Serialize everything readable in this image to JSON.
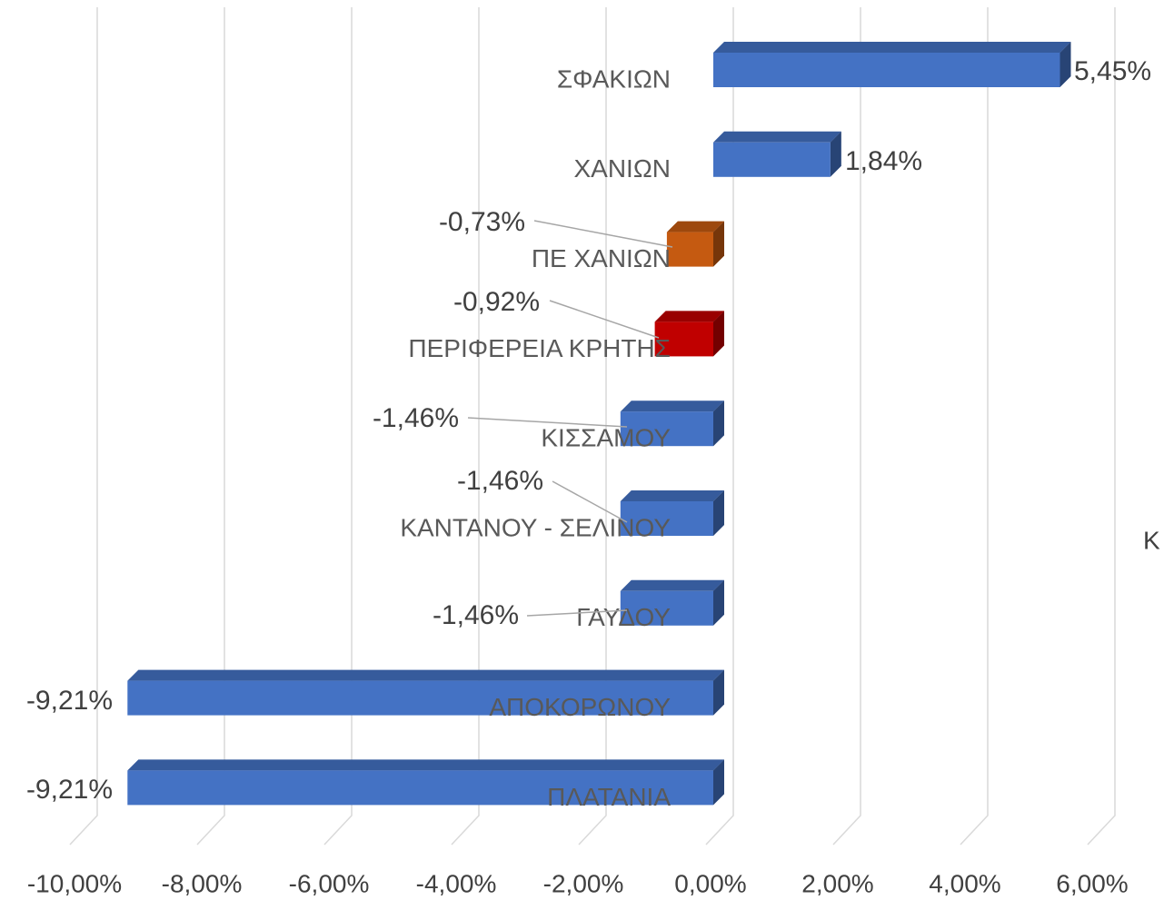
{
  "chart_data": {
    "type": "bar",
    "orientation": "horizontal",
    "categories": [
      "ΣΦΑΚΙΩΝ",
      "ΧΑΝΙΩΝ",
      "ΠΕ ΧΑΝΙΩΝ",
      "ΠΕΡΙΦΕΡΕΙΑ ΚΡΗΤΗΣ",
      "ΚΙΣΣΑΜΟΥ",
      "ΚΑΝΤΑΝΟΥ - ΣΕΛΙΝΟΥ",
      "ΓΑΥΔΟΥ",
      "ΑΠΟΚΟΡΩΝΟΥ",
      "ΠΛΑΤΑΝΙΑ"
    ],
    "values": [
      5.45,
      1.84,
      -0.73,
      -0.92,
      -1.46,
      -1.46,
      -1.46,
      -9.21,
      -9.21
    ],
    "value_labels": [
      "5,45%",
      "1,84%",
      "-0,73%",
      "-0,92%",
      "-1,46%",
      "-1,46%",
      "-1,46%",
      "-9,21%",
      "-9,21%"
    ],
    "colors": [
      "#4472c4",
      "#4472c4",
      "#c55a11",
      "#c00000",
      "#4472c4",
      "#4472c4",
      "#4472c4",
      "#4472c4",
      "#4472c4"
    ],
    "xlim": [
      -10,
      6
    ],
    "xticks": [
      {
        "value": -10,
        "label": "-10,00%"
      },
      {
        "value": -8,
        "label": "-8,00%"
      },
      {
        "value": -6,
        "label": "-6,00%"
      },
      {
        "value": -4,
        "label": "-4,00%"
      },
      {
        "value": -2,
        "label": "-2,00%"
      },
      {
        "value": 0,
        "label": "0,00%"
      },
      {
        "value": 2,
        "label": "2,00%"
      },
      {
        "value": 4,
        "label": "4,00%"
      },
      {
        "value": 6,
        "label": "6,00%"
      }
    ],
    "grid": true,
    "annotation": "Κ"
  }
}
